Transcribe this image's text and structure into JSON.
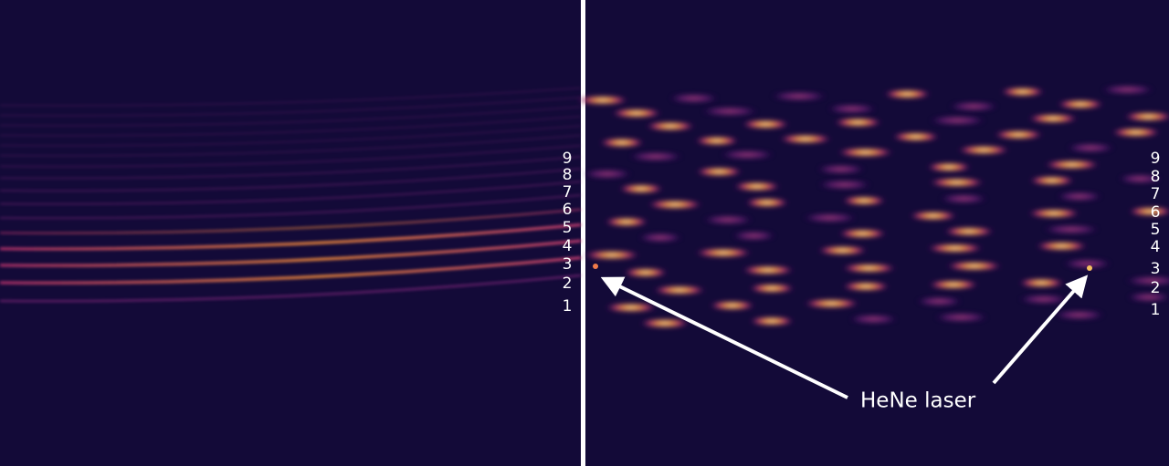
{
  "left_panel": {
    "order_labels": [
      "9",
      "8",
      "7",
      "6",
      "5",
      "4",
      "3",
      "2",
      "1"
    ]
  },
  "right_panel": {
    "order_labels": [
      "9",
      "8",
      "7",
      "6",
      "5",
      "4",
      "3",
      "2",
      "1"
    ]
  },
  "annotation": {
    "text": "HeNe laser"
  }
}
